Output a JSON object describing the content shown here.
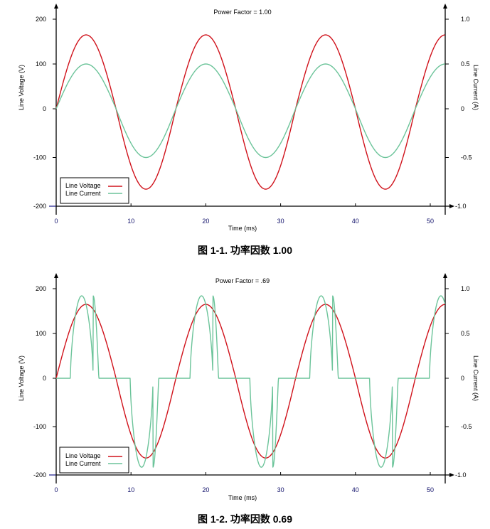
{
  "figures": [
    {
      "title": "Power Factor = 1.00",
      "caption": "图 1-1. 功率因数 1.00",
      "xlabel": "Time (ms)",
      "ylabel_left": "Line Voltage (V)",
      "ylabel_right": "Line Current (A)",
      "x_ticks": [
        "0",
        "10",
        "20",
        "30",
        "40",
        "50"
      ],
      "y_left_ticks": [
        "200",
        "100",
        "0",
        "-100",
        "-200"
      ],
      "y_right_ticks": [
        "1.0",
        "0.5",
        "0",
        "-0.5",
        "-1.0"
      ],
      "legend": [
        {
          "label": "Line Voltage",
          "color": "#d0121b"
        },
        {
          "label": "Line Current",
          "color": "#6cc49a"
        }
      ]
    },
    {
      "title": "Power Factor = .69",
      "caption": "图 1-2. 功率因数 0.69",
      "xlabel": "Time (ms)",
      "ylabel_left": "Line Voltage (V)",
      "ylabel_right": "Line Current (A)",
      "x_ticks": [
        "0",
        "10",
        "20",
        "30",
        "40",
        "50"
      ],
      "y_left_ticks": [
        "200",
        "100",
        "0",
        "-100",
        "-200"
      ],
      "y_right_ticks": [
        "1.0",
        "0.5",
        "0",
        "-0.5",
        "-1.0"
      ],
      "legend": [
        {
          "label": "Line Voltage",
          "color": "#d0121b"
        },
        {
          "label": "Line Current",
          "color": "#6cc49a"
        }
      ]
    }
  ],
  "chart_data": [
    {
      "type": "line",
      "title": "Power Factor = 1.00",
      "xlabel": "Time (ms)",
      "ylabel": "Line Voltage (V)",
      "ylabel_right": "Line Current (A)",
      "xlim": [
        0,
        52
      ],
      "ylim": [
        -200,
        200
      ],
      "ylim_right": [
        -1.0,
        1.0
      ],
      "grid": false,
      "legend_position": "lower left",
      "series": [
        {
          "name": "Line Voltage",
          "axis": "left",
          "color": "#d0121b",
          "function": "165*sin(2*pi*t/16)",
          "amplitude": 165,
          "period_ms": 16,
          "x": [
            0,
            4,
            8,
            12,
            16,
            20,
            24,
            28,
            32,
            36,
            40,
            44,
            48,
            52
          ],
          "values": [
            0,
            165,
            0,
            -165,
            0,
            165,
            0,
            -165,
            0,
            165,
            0,
            -165,
            0,
            165
          ]
        },
        {
          "name": "Line Current",
          "axis": "right",
          "color": "#6cc49a",
          "function": "0.5*sin(2*pi*t/16)",
          "amplitude": 0.5,
          "period_ms": 16,
          "x": [
            0,
            4,
            8,
            12,
            16,
            20,
            24,
            28,
            32,
            36,
            40,
            44,
            48,
            52
          ],
          "values": [
            0,
            0.5,
            0,
            -0.5,
            0,
            0.5,
            0,
            -0.5,
            0,
            0.5,
            0,
            -0.5,
            0,
            0.5
          ]
        }
      ]
    },
    {
      "type": "line",
      "title": "Power Factor = .69",
      "xlabel": "Time (ms)",
      "ylabel": "Line Voltage (V)",
      "ylabel_right": "Line Current (A)",
      "xlim": [
        0,
        52
      ],
      "ylim": [
        -200,
        200
      ],
      "ylim_right": [
        -1.0,
        1.0
      ],
      "grid": false,
      "legend_position": "lower left",
      "series": [
        {
          "name": "Line Voltage",
          "axis": "left",
          "color": "#d0121b",
          "function": "165*sin(2*pi*t/16)",
          "amplitude": 165,
          "period_ms": 16,
          "x": [
            0,
            4,
            8,
            12,
            16,
            20,
            24,
            28,
            32,
            36,
            40,
            44,
            48,
            52
          ],
          "values": [
            0,
            165,
            0,
            -165,
            0,
            165,
            0,
            -165,
            0,
            165,
            0,
            -165,
            0,
            165
          ]
        },
        {
          "name": "Line Current",
          "axis": "right",
          "color": "#6cc49a",
          "description": "Pulsed current: zero except during ~1.9–5.7 ms of each half-cycle, peaking ~0.92 A near t≈2.9 ms into each half-cycle",
          "pulse_peak": 0.92,
          "pulse_start_offset_ms": 1.9,
          "pulse_end_offset_ms": 5.7,
          "x": [
            0,
            1.9,
            2.9,
            3.8,
            5.7,
            9.9,
            10.9,
            11.8,
            13.7,
            17.9,
            18.9,
            19.8,
            21.7,
            25.9,
            26.9,
            27.8,
            29.7,
            33.9,
            34.9,
            35.8,
            37.7,
            41.9,
            42.9,
            43.8,
            45.7,
            49.9,
            50.9,
            51.8
          ],
          "values": [
            0,
            0,
            0.92,
            0.7,
            0,
            0,
            -0.92,
            -0.7,
            0,
            0,
            0.92,
            0.7,
            0,
            0,
            -0.92,
            -0.7,
            0,
            0,
            0.92,
            0.7,
            0,
            0,
            -0.92,
            -0.7,
            0,
            0,
            0.92,
            0.7
          ]
        }
      ]
    }
  ]
}
